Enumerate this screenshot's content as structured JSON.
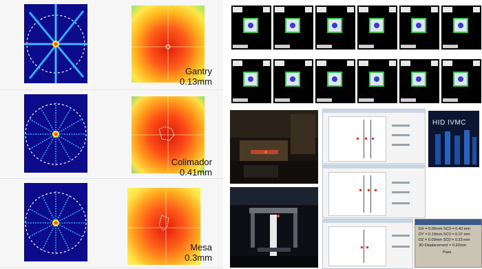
{
  "panels": [
    {
      "name": "Gantry",
      "value": "0.13mm"
    },
    {
      "name": "Colimador",
      "value": "0.41mm"
    },
    {
      "name": "Mesa",
      "value": "0.3mm"
    }
  ],
  "software": {
    "badge": "HID IVMC",
    "result": {
      "lines": [
        "DX = 0.06mm SC0 = 0.43 mm",
        "DY = 0.19mm SC0 = 0.37 mm",
        "DZ = 0.09mm SC0 = 0.23 mm",
        "3D Displacement = 0.22mm"
      ],
      "status": "Pass"
    }
  },
  "colors": {
    "star_bg": "#0b0b8c",
    "heat_core": "#e01b0b",
    "epid_square": "#3fc24a",
    "epid_dot": "#3b3bd0"
  }
}
